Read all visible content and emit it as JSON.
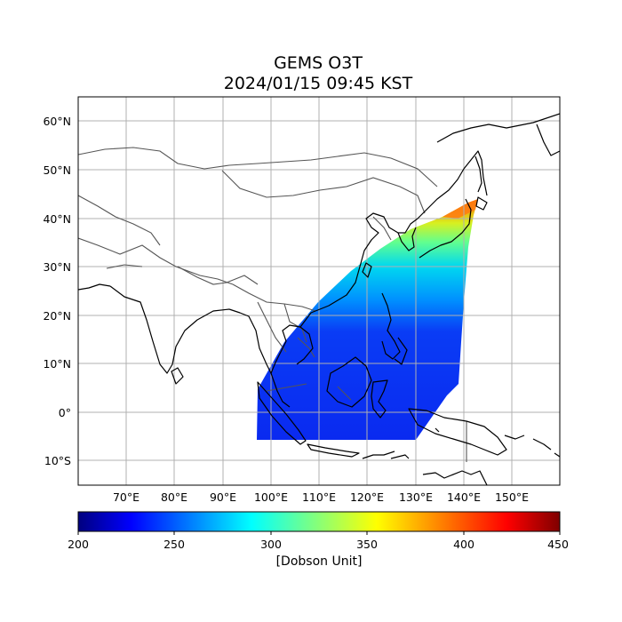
{
  "title": {
    "line1": "GEMS O3T",
    "line2": "2024/01/15 09:45 KST"
  },
  "map": {
    "projection": "PlateCarree",
    "lon_range": [
      60,
      160
    ],
    "lat_range": [
      -15,
      65
    ],
    "lat_ticks": [
      {
        "value": 60,
        "label": "60°N"
      },
      {
        "value": 50,
        "label": "50°N"
      },
      {
        "value": 40,
        "label": "40°N"
      },
      {
        "value": 30,
        "label": "30°N"
      },
      {
        "value": 20,
        "label": "20°N"
      },
      {
        "value": 10,
        "label": "10°N"
      },
      {
        "value": 0,
        "label": "0°"
      },
      {
        "value": -10,
        "label": "10°S"
      }
    ],
    "lon_ticks": [
      {
        "value": 70,
        "label": "70°E"
      },
      {
        "value": 80,
        "label": "80°E"
      },
      {
        "value": 90,
        "label": "90°E"
      },
      {
        "value": 100,
        "label": "100°E"
      },
      {
        "value": 110,
        "label": "110°E"
      },
      {
        "value": 120,
        "label": "120°E"
      },
      {
        "value": 130,
        "label": "130°E"
      },
      {
        "value": 140,
        "label": "140°E"
      },
      {
        "value": 150,
        "label": "150°E"
      }
    ],
    "grid": true,
    "coastline_color": "#000000",
    "border_color": "#555555"
  },
  "colorbar": {
    "colormap": "jet",
    "min": 200,
    "max": 450,
    "ticks": [
      200,
      250,
      300,
      350,
      400,
      450
    ],
    "label": "[Dobson Unit]",
    "orientation": "horizontal",
    "colors": [
      "#00007f",
      "#0000ff",
      "#007fff",
      "#00ffff",
      "#7fff7f",
      "#ffff00",
      "#ff7f00",
      "#ff0000",
      "#7f0000"
    ]
  }
}
